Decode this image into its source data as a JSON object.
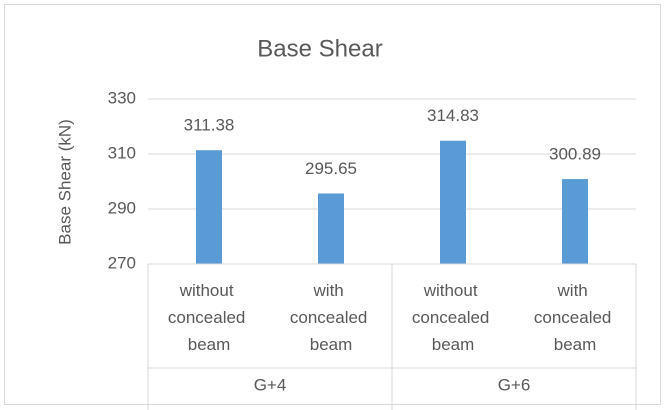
{
  "chart_data": {
    "type": "bar",
    "title": "Base Shear",
    "y_label": "Base Shear (kN)",
    "categories": [
      "without concealed beam",
      "with concealed beam",
      "without concealed beam",
      "with concealed beam"
    ],
    "groups": [
      "G+4",
      "G+6"
    ],
    "values": [
      311.38,
      295.65,
      314.83,
      300.89
    ],
    "color": "#5b9bd5",
    "ylim": [
      270,
      330
    ],
    "yticks": [
      270,
      290,
      310,
      330
    ],
    "grid": true
  }
}
